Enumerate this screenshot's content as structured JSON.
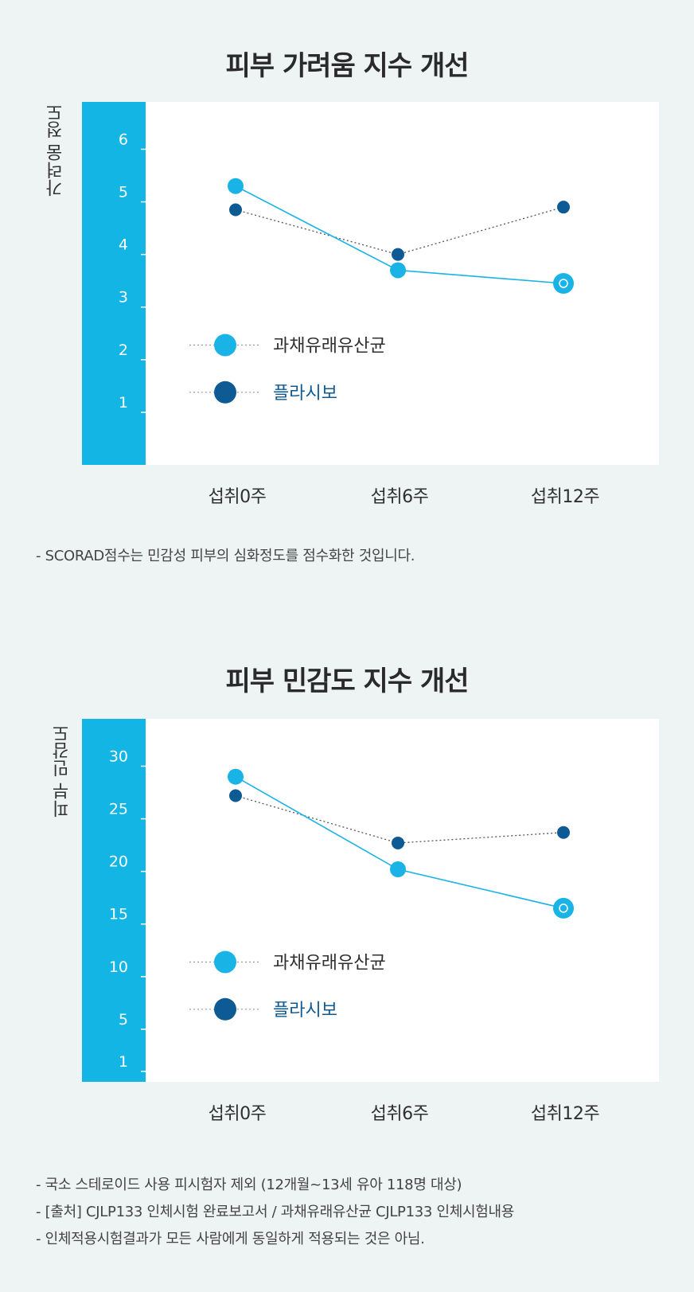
{
  "colors": {
    "accent": "#12b5e3",
    "series_probiotic": "#1ab3e6",
    "series_placebo": "#0e5a94",
    "axis_band": "#12b5e3",
    "placebo_text": "#0e5a94"
  },
  "chart_data": [
    {
      "type": "line",
      "title": "피부 가려움 지수 개선",
      "ylabel": "가려움 정도",
      "xlabel": "",
      "categories": [
        "섭취0주",
        "섭취6주",
        "섭취12주"
      ],
      "yticks": [
        "6",
        "5",
        "4",
        "3",
        "2",
        "1"
      ],
      "ylim": [
        0,
        6.9
      ],
      "series": [
        {
          "name": "과채유래유산균",
          "values": [
            5.3,
            3.7,
            3.45
          ],
          "style": "solid"
        },
        {
          "name": "플라시보",
          "values": [
            4.85,
            4.0,
            4.9
          ],
          "style": "dotted"
        }
      ],
      "legend": "inside-left",
      "grid": false
    },
    {
      "type": "line",
      "title": "피부 민감도 지수 개선",
      "ylabel": "피부 민감도",
      "xlabel": "",
      "categories": [
        "섭취0주",
        "섭취6주",
        "섭취12주"
      ],
      "yticks": [
        "30",
        "25",
        "20",
        "15",
        "10",
        "5",
        "1"
      ],
      "ylim": [
        0,
        34.5
      ],
      "series": [
        {
          "name": "과채유래유산균",
          "values": [
            29.0,
            20.2,
            16.5
          ],
          "style": "solid"
        },
        {
          "name": "플라시보",
          "values": [
            27.2,
            22.7,
            23.7
          ],
          "style": "dotted"
        }
      ],
      "legend": "inside-left",
      "grid": false
    }
  ],
  "notes1": [
    "- SCORAD점수는 민감성 피부의 심화정도를 점수화한 것입니다."
  ],
  "notes2": [
    "- 국소 스테로이드 사용 피시험자 제외 (12개월~13세 유아 118명 대상)",
    "- [출처] CJLP133 인체시험 완료보고서 / 과채유래유산균 CJLP133 인체시험내용",
    "- 인체적용시험결과가 모든 사람에게 동일하게 적용되는 것은 아님."
  ]
}
